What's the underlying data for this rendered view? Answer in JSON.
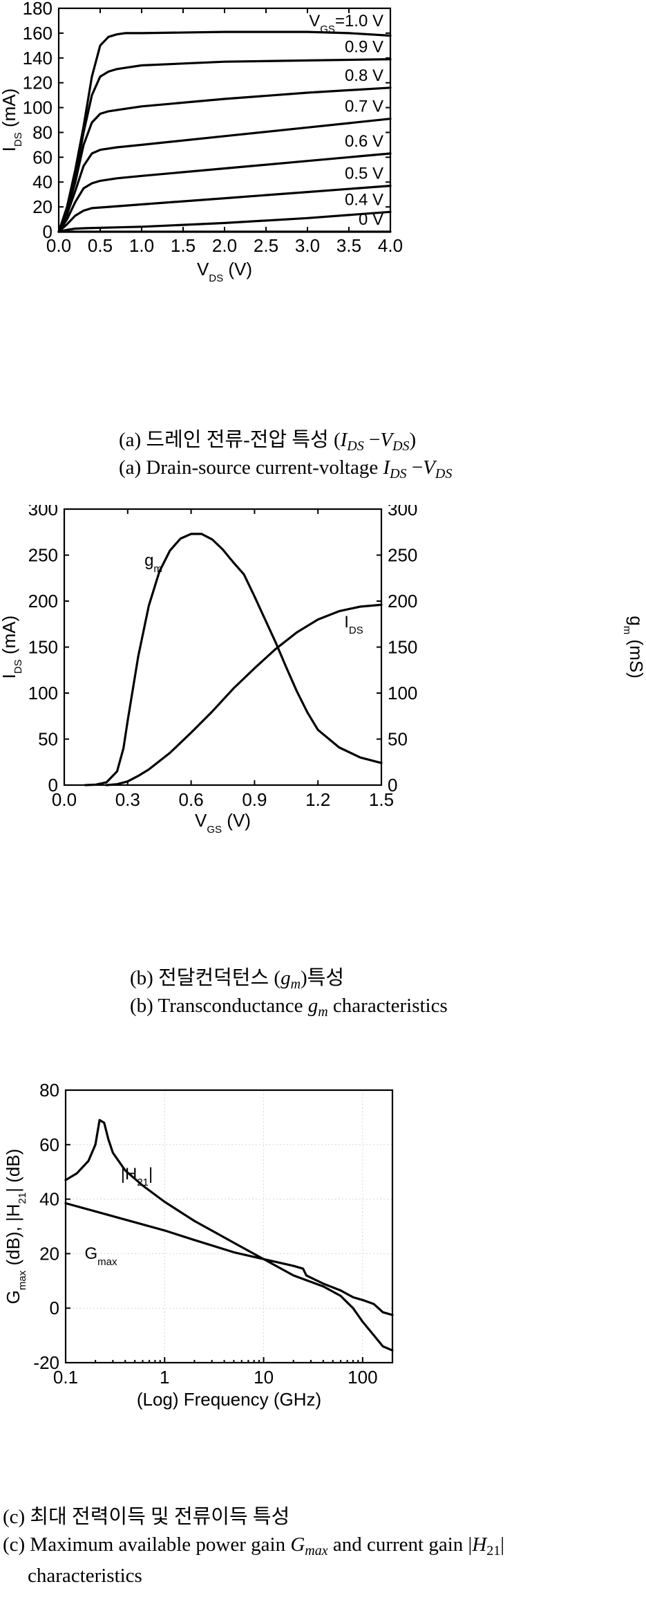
{
  "captions": {
    "a_kr_prefix": "(a) 드레인 전류-전압 특성 (",
    "a_kr_suffix": ")",
    "a_en_prefix": "(a) Drain-source current-voltage",
    "b_kr_prefix": "(b) 전달컨덕턴스 (",
    "b_kr_suffix": ")특성",
    "b_en_prefix": "(b) Transconductance",
    "b_en_suffix": "characteristics",
    "c_kr": "(c) 최대 전력이득 및 전류이득 특성",
    "c_en_prefix": "(c) Maximum available power gain",
    "c_en_mid": "and current gain |",
    "c_en_suffix": "|",
    "c_en_line2": "characteristics"
  },
  "chart_data": [
    {
      "type": "line",
      "xlabel": "V_DS (V)",
      "ylabel": "I_DS (mA)",
      "xlim": [
        0,
        4.0
      ],
      "ylim": [
        0,
        180
      ],
      "x_ticks": [
        "0.0",
        "0.5",
        "1.0",
        "1.5",
        "2.0",
        "2.5",
        "3.0",
        "3.5",
        "4.0"
      ],
      "y_ticks": [
        "0",
        "20",
        "40",
        "60",
        "80",
        "100",
        "120",
        "140",
        "160",
        "180"
      ],
      "series": [
        {
          "name": "V_GS=1.0 V",
          "points": [
            [
              0,
              0
            ],
            [
              0.1,
              20
            ],
            [
              0.2,
              50
            ],
            [
              0.3,
              85
            ],
            [
              0.4,
              125
            ],
            [
              0.5,
              150
            ],
            [
              0.6,
              157
            ],
            [
              0.7,
              159
            ],
            [
              0.8,
              160
            ],
            [
              1.0,
              160
            ],
            [
              2.0,
              161
            ],
            [
              3.0,
              161
            ],
            [
              3.5,
              160
            ],
            [
              4.0,
              158
            ]
          ]
        },
        {
          "name": "0.9 V",
          "points": [
            [
              0,
              0
            ],
            [
              0.1,
              18
            ],
            [
              0.2,
              45
            ],
            [
              0.3,
              80
            ],
            [
              0.4,
              110
            ],
            [
              0.5,
              125
            ],
            [
              0.6,
              129
            ],
            [
              0.7,
              131
            ],
            [
              0.8,
              132
            ],
            [
              1.0,
              134
            ],
            [
              2.0,
              137
            ],
            [
              3.0,
              138
            ],
            [
              4.0,
              139
            ]
          ]
        },
        {
          "name": "0.8 V",
          "points": [
            [
              0,
              0
            ],
            [
              0.1,
              17
            ],
            [
              0.2,
              40
            ],
            [
              0.3,
              70
            ],
            [
              0.4,
              88
            ],
            [
              0.5,
              95
            ],
            [
              0.6,
              97
            ],
            [
              0.8,
              99
            ],
            [
              1.0,
              101
            ],
            [
              2.0,
              107
            ],
            [
              3.0,
              112
            ],
            [
              4.0,
              116
            ]
          ]
        },
        {
          "name": "0.7 V",
          "points": [
            [
              0,
              0
            ],
            [
              0.1,
              14
            ],
            [
              0.2,
              33
            ],
            [
              0.3,
              53
            ],
            [
              0.4,
              63
            ],
            [
              0.5,
              66
            ],
            [
              0.7,
              68
            ],
            [
              1.0,
              70
            ],
            [
              2.0,
              77
            ],
            [
              3.0,
              84
            ],
            [
              4.0,
              91
            ]
          ]
        },
        {
          "name": "0.6 V",
          "points": [
            [
              0,
              0
            ],
            [
              0.1,
              10
            ],
            [
              0.2,
              24
            ],
            [
              0.3,
              35
            ],
            [
              0.4,
              39
            ],
            [
              0.5,
              41
            ],
            [
              0.7,
              43
            ],
            [
              1.0,
              45
            ],
            [
              2.0,
              51
            ],
            [
              3.0,
              57
            ],
            [
              4.0,
              63
            ]
          ]
        },
        {
          "name": "0.5 V",
          "points": [
            [
              0,
              0
            ],
            [
              0.1,
              6
            ],
            [
              0.2,
              13
            ],
            [
              0.3,
              17
            ],
            [
              0.4,
              19
            ],
            [
              0.6,
              20
            ],
            [
              1.0,
              22
            ],
            [
              2.0,
              27
            ],
            [
              3.0,
              32
            ],
            [
              4.0,
              37
            ]
          ]
        },
        {
          "name": "0.4 V",
          "points": [
            [
              0,
              0
            ],
            [
              0.1,
              1.5
            ],
            [
              0.2,
              2.5
            ],
            [
              0.4,
              3
            ],
            [
              1.0,
              4
            ],
            [
              2.0,
              7
            ],
            [
              3.0,
              11
            ],
            [
              4.0,
              16
            ]
          ]
        },
        {
          "name": "0 V",
          "points": [
            [
              0,
              0
            ],
            [
              4.0,
              0
            ]
          ]
        }
      ]
    },
    {
      "type": "line",
      "xlabel": "V_GS (V)",
      "ylabel": "I_DS (mA)",
      "y2label": "g_m (mS)",
      "xlim": [
        0,
        1.5
      ],
      "ylim": [
        0,
        300
      ],
      "y2lim": [
        0,
        300
      ],
      "x_ticks": [
        "0.0",
        "0.3",
        "0.6",
        "0.9",
        "1.2",
        "1.5"
      ],
      "y_ticks": [
        "0",
        "50",
        "100",
        "150",
        "200",
        "250",
        "300"
      ],
      "series": [
        {
          "name": "g_m",
          "axis": "right",
          "points": [
            [
              0.1,
              0
            ],
            [
              0.15,
              0.5
            ],
            [
              0.2,
              3
            ],
            [
              0.25,
              15
            ],
            [
              0.28,
              40
            ],
            [
              0.3,
              70
            ],
            [
              0.35,
              140
            ],
            [
              0.4,
              195
            ],
            [
              0.45,
              232
            ],
            [
              0.5,
              255
            ],
            [
              0.55,
              268
            ],
            [
              0.6,
              273
            ],
            [
              0.65,
              273
            ],
            [
              0.7,
              267
            ],
            [
              0.75,
              256
            ],
            [
              0.8,
              242
            ],
            [
              0.85,
              229
            ],
            [
              0.9,
              205
            ],
            [
              0.95,
              180
            ],
            [
              1.0,
              155
            ],
            [
              1.05,
              128
            ],
            [
              1.1,
              102
            ],
            [
              1.15,
              79
            ],
            [
              1.2,
              60
            ],
            [
              1.3,
              41
            ],
            [
              1.4,
              30
            ],
            [
              1.5,
              24
            ]
          ]
        },
        {
          "name": "I_DS",
          "axis": "left",
          "points": [
            [
              0.2,
              0
            ],
            [
              0.25,
              1
            ],
            [
              0.3,
              4
            ],
            [
              0.35,
              10
            ],
            [
              0.4,
              17
            ],
            [
              0.5,
              35
            ],
            [
              0.6,
              57
            ],
            [
              0.7,
              80
            ],
            [
              0.8,
              105
            ],
            [
              0.9,
              127
            ],
            [
              1.0,
              148
            ],
            [
              1.1,
              166
            ],
            [
              1.2,
              180
            ],
            [
              1.3,
              189
            ],
            [
              1.4,
              194
            ],
            [
              1.5,
              196
            ]
          ]
        }
      ]
    },
    {
      "type": "line",
      "xscale": "log",
      "xlabel": "(Log) Frequency (GHz)",
      "ylabel": "G_max (dB), |H_21| (dB)",
      "xlim": [
        0.1,
        200
      ],
      "ylim": [
        -20,
        80
      ],
      "grid": true,
      "x_ticks": [
        "0.1",
        "1",
        "10",
        "100"
      ],
      "y_ticks": [
        "-20",
        "0",
        "20",
        "40",
        "60",
        "80"
      ],
      "series": [
        {
          "name": "|H_21|",
          "points": [
            [
              0.1,
              47
            ],
            [
              0.13,
              49.5
            ],
            [
              0.17,
              54
            ],
            [
              0.2,
              60
            ],
            [
              0.22,
              69
            ],
            [
              0.245,
              68
            ],
            [
              0.27,
              62
            ],
            [
              0.3,
              57
            ],
            [
              0.4,
              50.5
            ],
            [
              0.6,
              45
            ],
            [
              1,
              39
            ],
            [
              2,
              32
            ],
            [
              5,
              24
            ],
            [
              10,
              18
            ],
            [
              20,
              12
            ],
            [
              40,
              8
            ],
            [
              60,
              4.5
            ],
            [
              80,
              0
            ],
            [
              100,
              -5
            ],
            [
              130,
              -10
            ],
            [
              160,
              -14
            ],
            [
              200,
              -15.5
            ]
          ]
        },
        {
          "name": "G_max",
          "points": [
            [
              0.1,
              38.5
            ],
            [
              0.2,
              35.5
            ],
            [
              0.5,
              31.5
            ],
            [
              1,
              28.5
            ],
            [
              2,
              25
            ],
            [
              5,
              20.5
            ],
            [
              10,
              18
            ],
            [
              20,
              15.5
            ],
            [
              25,
              14.5
            ],
            [
              27,
              12
            ],
            [
              40,
              9
            ],
            [
              60,
              6.5
            ],
            [
              80,
              4
            ],
            [
              100,
              3
            ],
            [
              130,
              1.5
            ],
            [
              160,
              -1.5
            ],
            [
              200,
              -2.5
            ]
          ]
        }
      ]
    }
  ]
}
